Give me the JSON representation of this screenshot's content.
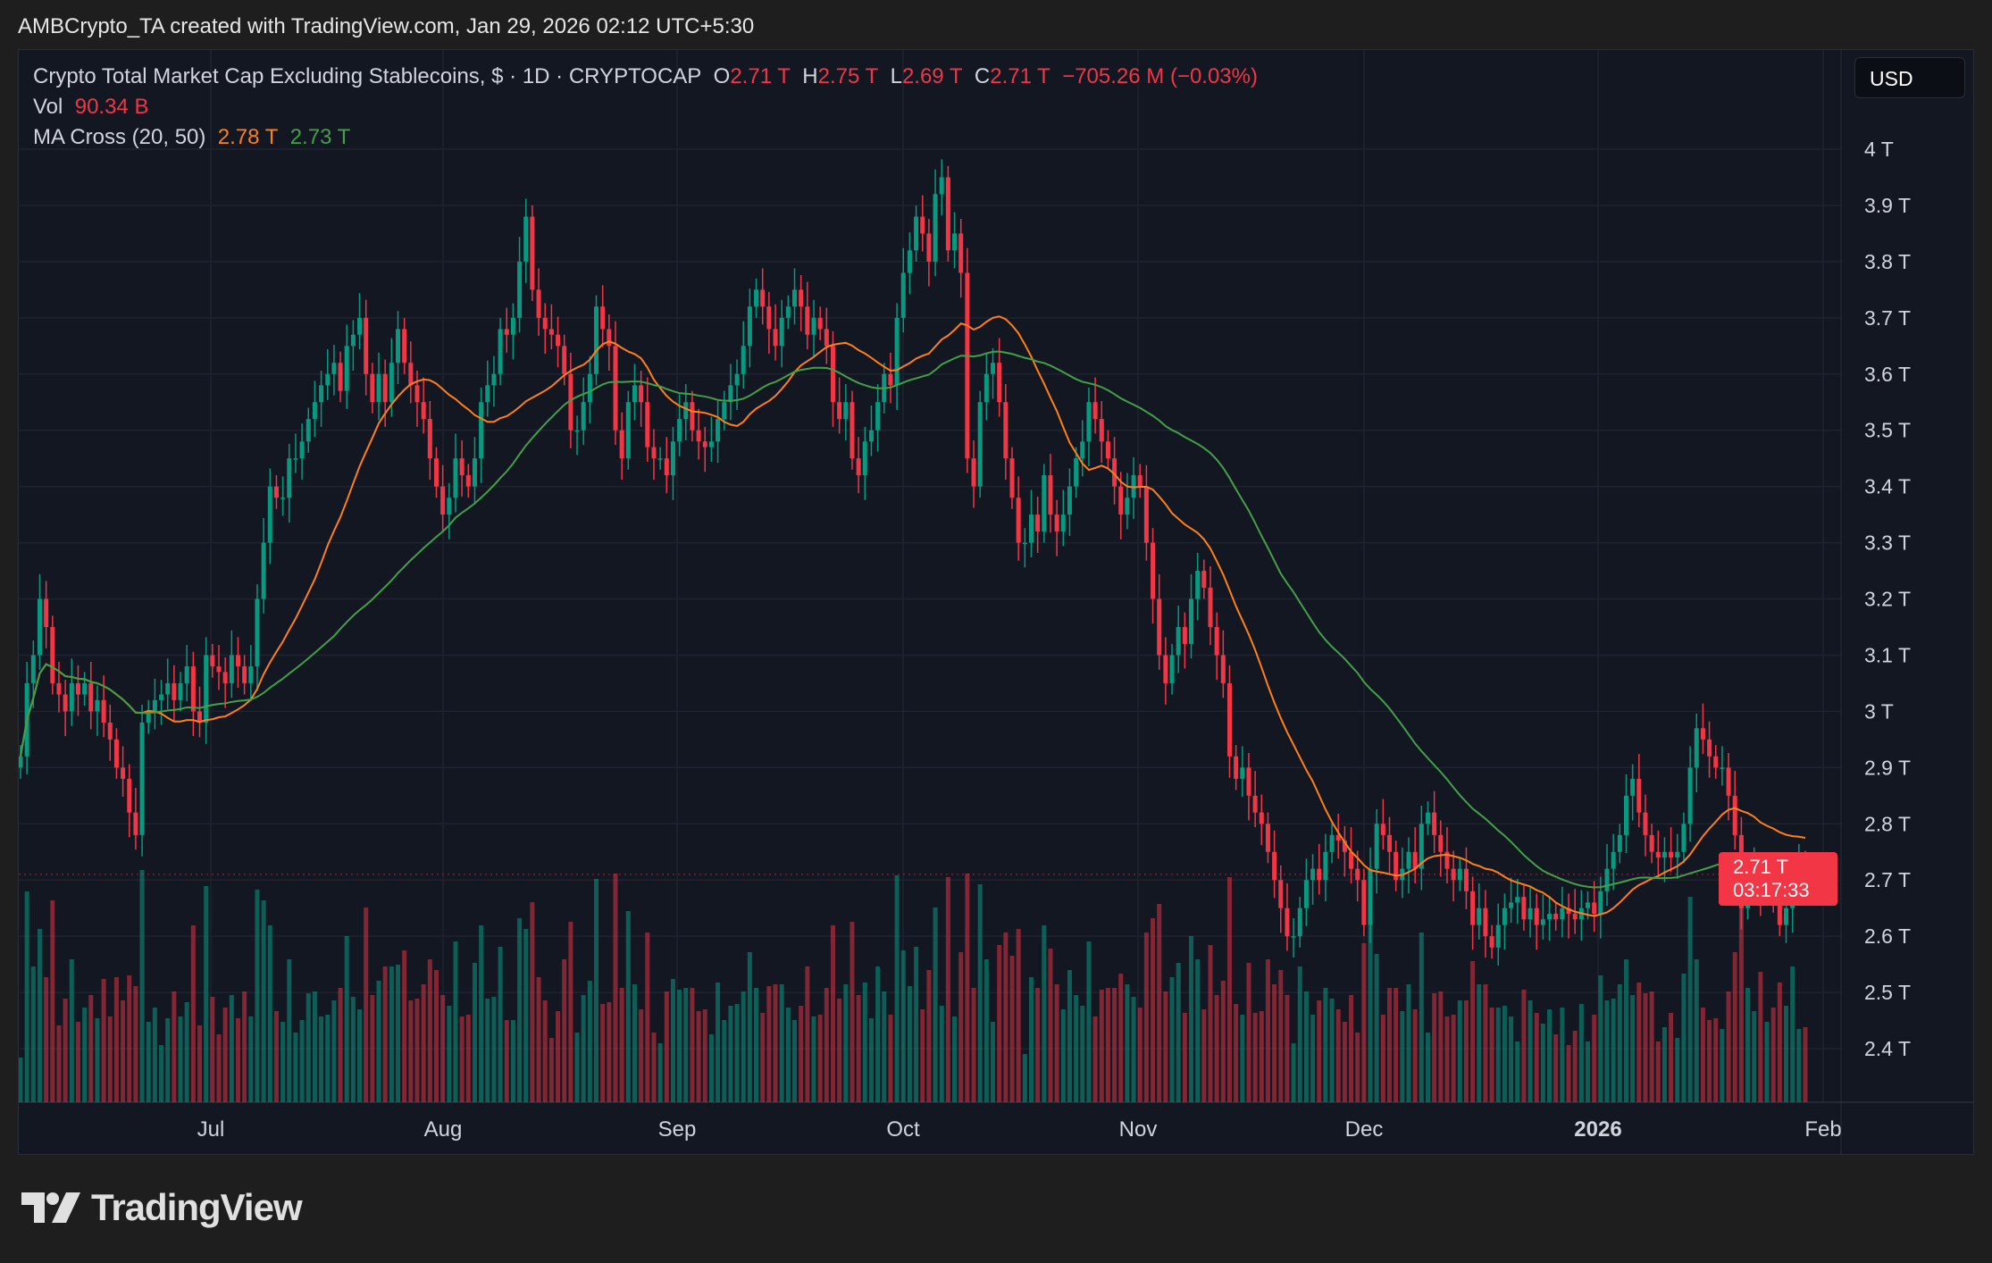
{
  "credit": "AMBCrypto_TA created with TradingView.com, Jan 29, 2026 02:12 UTC+5:30",
  "legend": {
    "symbol": "Crypto Total Market Cap Excluding Stablecoins, $ · 1D · CRYPTOCAP",
    "o_label": "O",
    "o": "2.71 T",
    "h_label": "H",
    "h": "2.75 T",
    "l_label": "L",
    "l": "2.69 T",
    "c_label": "C",
    "c": "2.71 T",
    "change": "−705.26 M (−0.03%)",
    "vol_label": "Vol",
    "vol": "90.34 B",
    "ma_label": "MA Cross (20, 50)",
    "ma20": "2.78 T",
    "ma50": "2.73 T"
  },
  "currency_button": "USD",
  "price_tag": {
    "price": "2.71 T",
    "countdown": "03:17:33"
  },
  "logo_text": "TradingView",
  "colors": {
    "up": "#089981",
    "down": "#f23645",
    "ma20": "#ff7f1a",
    "ma50": "#43a047",
    "background": "#131722"
  },
  "chart_data": {
    "type": "candlestick",
    "title": "Crypto Total Market Cap Excluding Stablecoins, $ · 1D · CRYPTOCAP",
    "ylim": [
      2.3,
      4.05
    ],
    "y_ticks": [
      "4 T",
      "3.9 T",
      "3.8 T",
      "3.7 T",
      "3.6 T",
      "3.5 T",
      "3.4 T",
      "3.3 T",
      "3.2 T",
      "3.1 T",
      "3 T",
      "2.9 T",
      "2.8 T",
      "2.7 T",
      "2.6 T",
      "2.5 T",
      "2.4 T"
    ],
    "x_ticks": [
      "Jul",
      "Aug",
      "Sep",
      "Oct",
      "Nov",
      "Dec",
      "2026",
      "Feb"
    ],
    "date_range": [
      "2025-06",
      "2026-01-28"
    ],
    "grid": true,
    "indicators": [
      "Vol",
      "MA 20",
      "MA 50"
    ],
    "closes_trillions": [
      2.92,
      3.05,
      3.1,
      3.2,
      3.15,
      3.05,
      3.03,
      3.0,
      3.05,
      3.03,
      3.05,
      3.0,
      3.02,
      2.98,
      2.95,
      2.9,
      2.88,
      2.82,
      2.78,
      2.98,
      3.0,
      3.02,
      3.03,
      3.05,
      3.02,
      3.05,
      3.08,
      3.0,
      2.98,
      3.1,
      3.08,
      3.07,
      3.05,
      3.1,
      3.08,
      3.05,
      3.08,
      3.2,
      3.3,
      3.4,
      3.38,
      3.38,
      3.45,
      3.45,
      3.48,
      3.52,
      3.55,
      3.58,
      3.6,
      3.62,
      3.57,
      3.65,
      3.67,
      3.7,
      3.6,
      3.55,
      3.6,
      3.55,
      3.62,
      3.68,
      3.62,
      3.58,
      3.55,
      3.52,
      3.45,
      3.4,
      3.35,
      3.38,
      3.45,
      3.42,
      3.4,
      3.45,
      3.55,
      3.58,
      3.6,
      3.68,
      3.67,
      3.7,
      3.8,
      3.88,
      3.75,
      3.7,
      3.68,
      3.67,
      3.65,
      3.6,
      3.5,
      3.5,
      3.55,
      3.6,
      3.72,
      3.68,
      3.65,
      3.5,
      3.45,
      3.55,
      3.58,
      3.55,
      3.47,
      3.45,
      3.45,
      3.42,
      3.48,
      3.52,
      3.55,
      3.5,
      3.48,
      3.47,
      3.48,
      3.52,
      3.55,
      3.58,
      3.6,
      3.65,
      3.72,
      3.75,
      3.72,
      3.68,
      3.65,
      3.7,
      3.72,
      3.75,
      3.72,
      3.67,
      3.7,
      3.68,
      3.65,
      3.55,
      3.52,
      3.55,
      3.45,
      3.42,
      3.48,
      3.5,
      3.55,
      3.6,
      3.58,
      3.7,
      3.78,
      3.82,
      3.88,
      3.85,
      3.8,
      3.92,
      3.95,
      3.82,
      3.85,
      3.78,
      3.45,
      3.4,
      3.55,
      3.6,
      3.62,
      3.55,
      3.45,
      3.38,
      3.3,
      3.3,
      3.35,
      3.32,
      3.42,
      3.35,
      3.32,
      3.35,
      3.4,
      3.45,
      3.48,
      3.55,
      3.52,
      3.48,
      3.45,
      3.4,
      3.35,
      3.38,
      3.42,
      3.4,
      3.3,
      3.2,
      3.1,
      3.05,
      3.1,
      3.15,
      3.12,
      3.2,
      3.25,
      3.22,
      3.15,
      3.1,
      3.05,
      2.92,
      2.88,
      2.9,
      2.85,
      2.82,
      2.8,
      2.75,
      2.7,
      2.65,
      2.6,
      2.6,
      2.65,
      2.7,
      2.72,
      2.7,
      2.75,
      2.78,
      2.77,
      2.75,
      2.72,
      2.7,
      2.62,
      2.72,
      2.8,
      2.78,
      2.75,
      2.7,
      2.72,
      2.75,
      2.72,
      2.8,
      2.82,
      2.78,
      2.75,
      2.72,
      2.7,
      2.72,
      2.68,
      2.62,
      2.65,
      2.6,
      2.58,
      2.62,
      2.65,
      2.66,
      2.67,
      2.63,
      2.65,
      2.62,
      2.63,
      2.64,
      2.63,
      2.65,
      2.64,
      2.63,
      2.65,
      2.66,
      2.64,
      2.68,
      2.72,
      2.75,
      2.78,
      2.85,
      2.88,
      2.82,
      2.78,
      2.75,
      2.74,
      2.75,
      2.74,
      2.75,
      2.8,
      2.9,
      2.97,
      2.95,
      2.92,
      2.9,
      2.9,
      2.85,
      2.78,
      2.65,
      2.7,
      2.72,
      2.68,
      2.7,
      2.68,
      2.62,
      2.65,
      2.7,
      2.72,
      2.71
    ],
    "last": {
      "open": 2.71,
      "high": 2.75,
      "low": 2.69,
      "close": 2.71,
      "volume_billions": 90.34,
      "ma20": 2.78,
      "ma50": 2.73
    }
  }
}
